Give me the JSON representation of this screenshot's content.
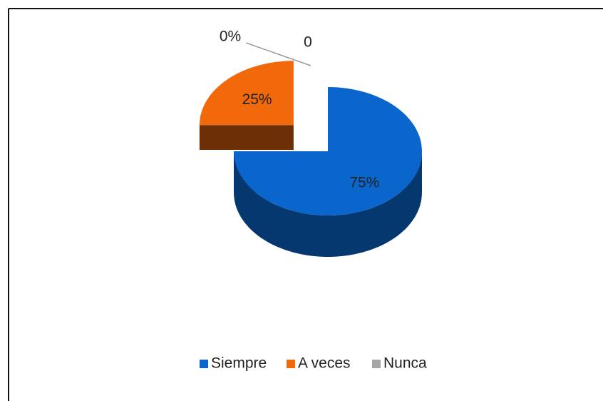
{
  "chart_data": {
    "type": "pie",
    "categories": [
      "Siempre",
      "A veces",
      "Nunca"
    ],
    "values": [
      75,
      25,
      0
    ],
    "value_labels": [
      "75%",
      "25%",
      "0%"
    ],
    "colors": [
      "#0a66cc",
      "#f2690c",
      "#a5a5a5"
    ],
    "annotations": [
      "0"
    ],
    "legend": "bottom"
  }
}
